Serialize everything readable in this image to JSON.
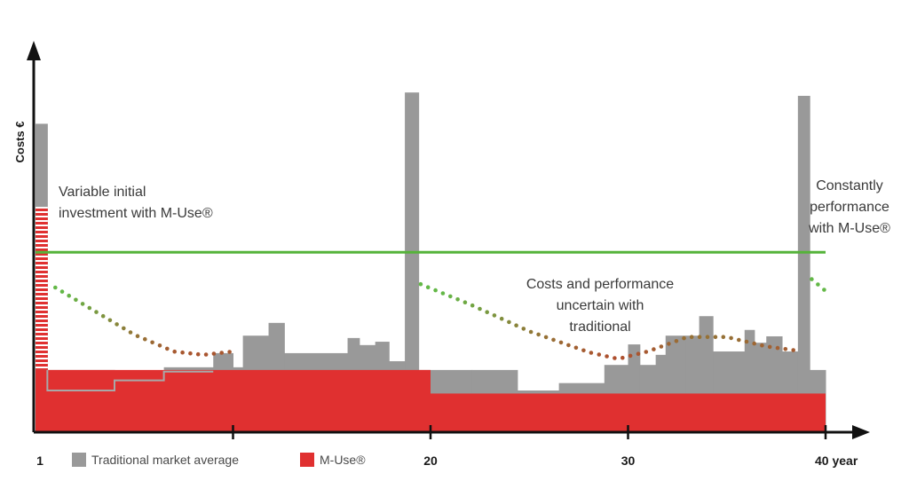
{
  "chart_data": {
    "type": "bar",
    "ylabel": "Costs €",
    "xlim": [
      0,
      40
    ],
    "ylim": [
      0,
      100
    ],
    "x_ticks": [
      {
        "x": 0,
        "label": "1"
      },
      {
        "x": 10,
        "label": ""
      },
      {
        "x": 20,
        "label": "20"
      },
      {
        "x": 30,
        "label": "30"
      },
      {
        "x": 40,
        "label": "40 year"
      }
    ],
    "legend": [
      {
        "name": "Traditional market average",
        "color": "#999999"
      },
      {
        "name": "M-Use®",
        "color": "#e03030"
      }
    ],
    "colors": {
      "traditional": "#999999",
      "muse": "#e03030",
      "constant_line": "#55b33a",
      "dotted_high": "#63b847",
      "dotted_low": "#b5462c",
      "axis": "#111111"
    },
    "constant_line_value": 53.5,
    "traditional_bars": [
      [
        0.0,
        0.6,
        91.7
      ],
      [
        0.6,
        4.0,
        18.5
      ],
      [
        4.0,
        6.5,
        12.4
      ],
      [
        6.5,
        9.0,
        19.3
      ],
      [
        9.0,
        10.0,
        23.5
      ],
      [
        10.0,
        10.5,
        19.3
      ],
      [
        10.5,
        11.8,
        28.7
      ],
      [
        11.8,
        12.6,
        32.5
      ],
      [
        12.6,
        15.8,
        23.5
      ],
      [
        15.8,
        16.4,
        28.0
      ],
      [
        16.4,
        17.2,
        25.9
      ],
      [
        17.2,
        17.9,
        26.9
      ],
      [
        17.9,
        18.7,
        21.1
      ],
      [
        18.7,
        19.4,
        101.0
      ],
      [
        19.4,
        22.1,
        18.5
      ],
      [
        22.1,
        24.4,
        18.5
      ],
      [
        24.4,
        26.5,
        12.4
      ],
      [
        26.5,
        28.8,
        14.6
      ],
      [
        28.8,
        30.0,
        20.0
      ],
      [
        30.0,
        30.6,
        26.1
      ],
      [
        30.6,
        31.4,
        20.0
      ],
      [
        31.4,
        31.9,
        23.0
      ],
      [
        31.9,
        32.9,
        28.7
      ],
      [
        32.9,
        33.6,
        28.7
      ],
      [
        33.6,
        34.3,
        34.5
      ],
      [
        34.3,
        35.9,
        24.0
      ],
      [
        35.9,
        36.4,
        30.4
      ],
      [
        36.4,
        37.0,
        26.6
      ],
      [
        37.0,
        37.8,
        28.5
      ],
      [
        37.8,
        38.6,
        24.0
      ],
      [
        38.6,
        39.2,
        100.0
      ],
      [
        39.2,
        40.0,
        18.5
      ]
    ],
    "muse_bars": [
      [
        0.0,
        20.0,
        18.5
      ],
      [
        20.0,
        40.0,
        11.5
      ]
    ],
    "muse_initial_investment": {
      "x_start": 0.0,
      "x_end": 0.6,
      "value": 67.0
    },
    "dotted_curves": [
      {
        "x": [
          1.0,
          3.0,
          5.0,
          7.0,
          8.5,
          10.0
        ],
        "y": [
          43.0,
          36.0,
          29.0,
          24.0,
          23.0,
          24.0
        ]
      },
      {
        "x": [
          19.5,
          22.0,
          25.0,
          28.0,
          29.5,
          31.0,
          33.0,
          35.0,
          37.0,
          38.5
        ],
        "y": [
          44.0,
          38.0,
          30.0,
          23.8,
          21.8,
          24.0,
          28.3,
          28.3,
          25.5,
          24.3
        ]
      },
      {
        "x": [
          39.3,
          40.0
        ],
        "y": [
          45.5,
          42.0
        ]
      }
    ],
    "annotations": [
      {
        "lines": [
          "Variable initial",
          "investment with M-Use®"
        ]
      },
      {
        "lines": [
          "Costs and performance",
          "uncertain with",
          "traditional"
        ]
      },
      {
        "lines": [
          "Constantly",
          "performance",
          "with M-Use®"
        ]
      }
    ]
  }
}
